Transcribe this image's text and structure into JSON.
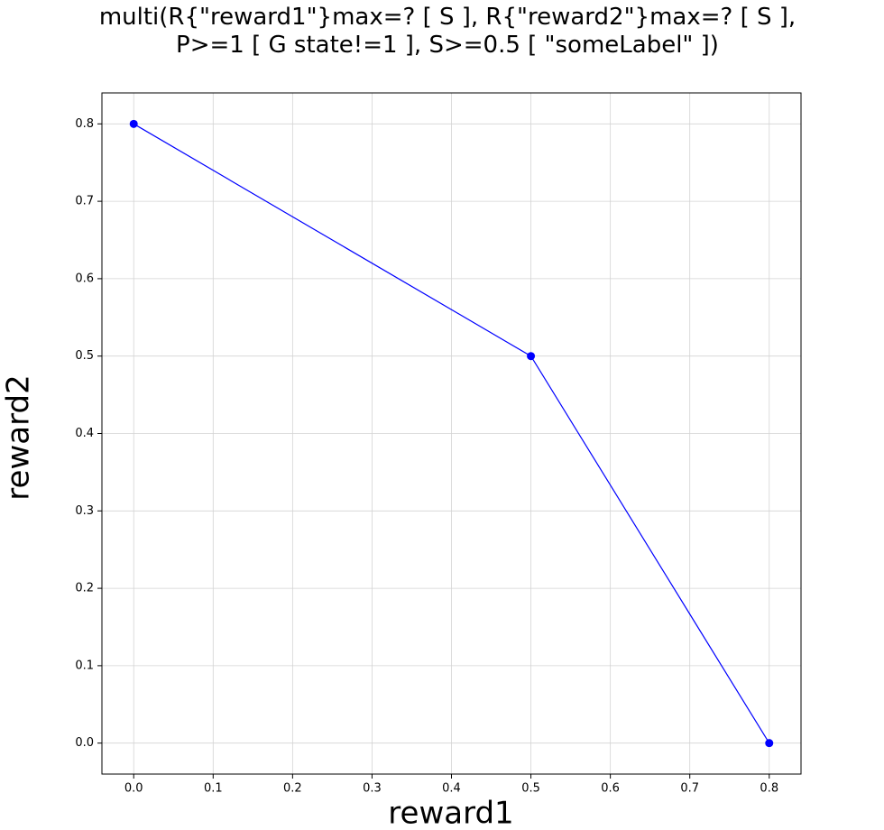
{
  "chart_data": {
    "type": "line",
    "title": "multi(R{\"reward1\"}max=? [ S ], R{\"reward2\"}max=? [ S ],\nP>=1 [ G state!=1 ], S>=0.5 [ \"someLabel\" ])",
    "x_label": "reward1",
    "y_label": "reward2",
    "x": [
      0,
      0.5,
      0.8
    ],
    "series": [
      {
        "name": "reward2",
        "color": "#0000ff",
        "values": [
          0.8,
          0.5,
          0
        ]
      }
    ],
    "markers": true,
    "xlim": [
      -0.04,
      0.84
    ],
    "ylim": [
      -0.04,
      0.84
    ],
    "xticks": [
      {
        "value": 0,
        "label": "0.0"
      },
      0.1,
      0.2,
      0.3,
      0.4,
      0.5,
      0.6,
      0.7,
      0.8
    ],
    "yticks": [
      {
        "value": 0,
        "label": "0.0"
      },
      0.1,
      0.2,
      0.3,
      0.4,
      0.5,
      0.6,
      0.7,
      0.8
    ],
    "grid": true
  }
}
